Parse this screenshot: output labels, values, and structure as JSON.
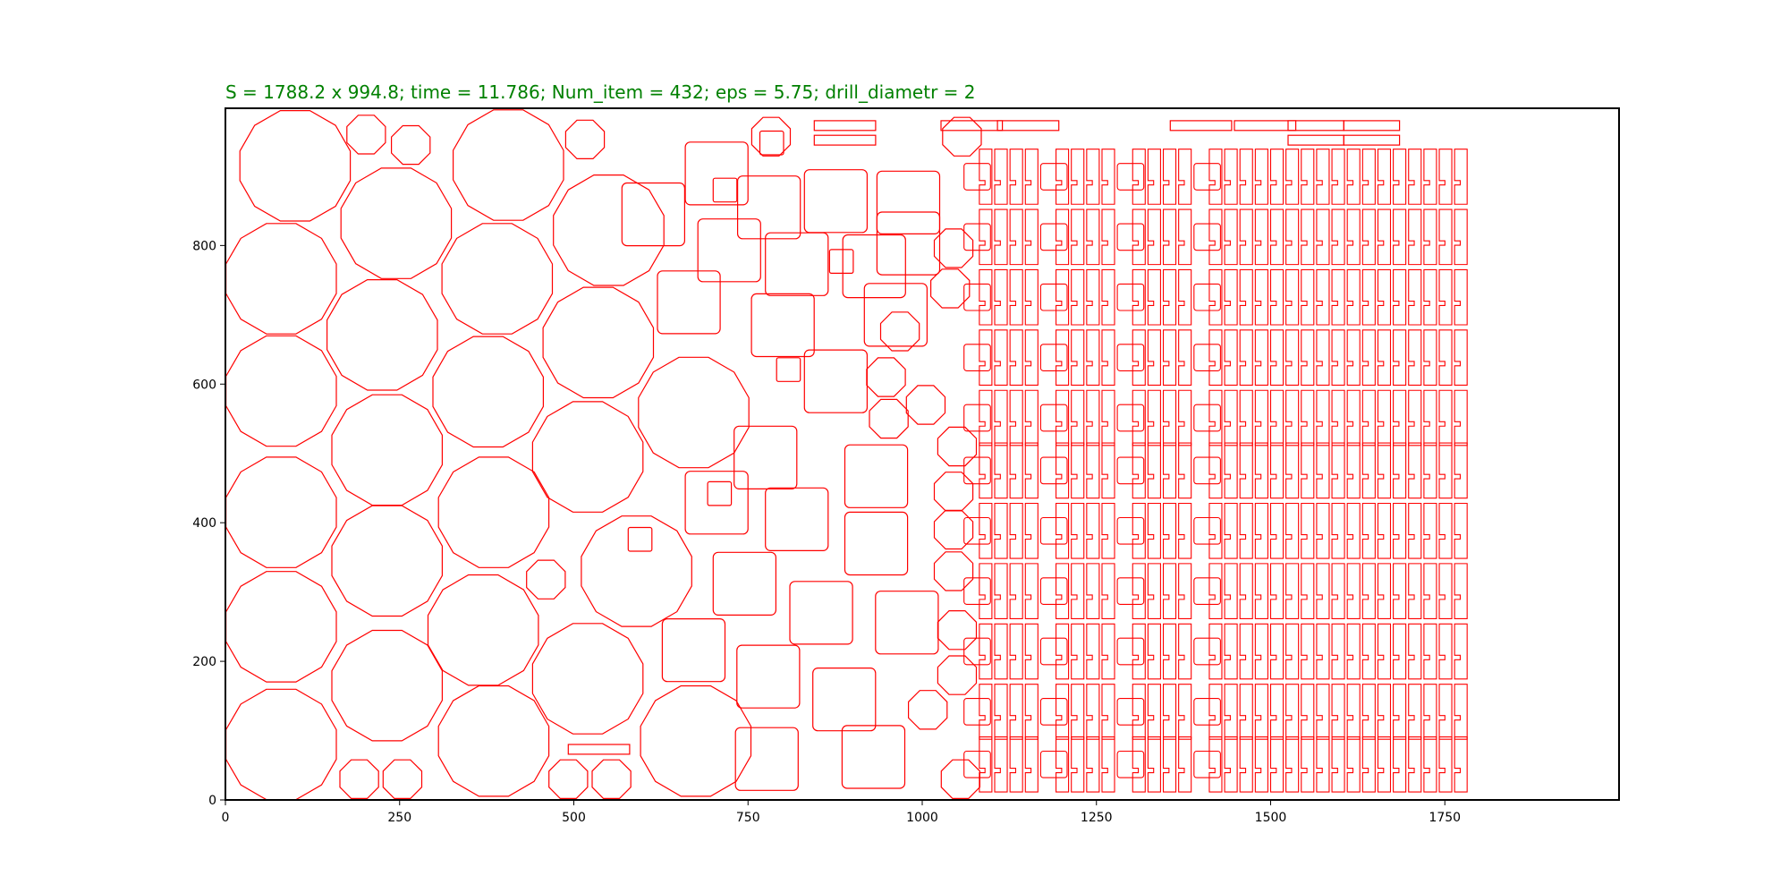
{
  "chart_data": {
    "type": "scatter",
    "title": "S = 1788.2 x 994.8;  time = 11.786;  Num_item = 432;  eps = 5.75;  drill_diametr = 2",
    "xlabel": "",
    "ylabel": "",
    "xlim": [
      0,
      2000
    ],
    "ylim": [
      0,
      998
    ],
    "x_ticks": [
      "0",
      "250",
      "500",
      "750",
      "1000",
      "1250",
      "1500",
      "1750"
    ],
    "y_ticks": [
      "0",
      "200",
      "400",
      "600",
      "800"
    ],
    "grid": false,
    "legend": "none",
    "colors": {
      "title": "#008000",
      "items": "#ff0000",
      "axes": "#000000"
    },
    "octagons": [
      [
        100,
        915,
        82
      ],
      [
        202,
        960,
        30
      ],
      [
        266,
        945,
        30
      ],
      [
        406,
        916,
        82
      ],
      [
        516,
        953,
        30
      ],
      [
        245,
        832,
        82
      ],
      [
        550,
        822,
        82
      ],
      [
        80,
        752,
        82
      ],
      [
        390,
        752,
        82
      ],
      [
        225,
        671,
        82
      ],
      [
        535,
        660,
        82
      ],
      [
        80,
        590,
        82
      ],
      [
        377,
        589,
        82
      ],
      [
        672,
        559,
        82
      ],
      [
        232,
        505,
        82
      ],
      [
        80,
        415,
        82
      ],
      [
        385,
        415,
        82
      ],
      [
        520,
        495,
        82
      ],
      [
        232,
        345,
        82
      ],
      [
        590,
        330,
        82
      ],
      [
        80,
        250,
        82
      ],
      [
        370,
        245,
        82
      ],
      [
        232,
        165,
        82
      ],
      [
        520,
        175,
        82
      ],
      [
        80,
        80,
        82
      ],
      [
        385,
        85,
        82
      ],
      [
        675,
        85,
        82
      ],
      [
        192,
        30,
        30
      ],
      [
        254,
        30,
        30
      ],
      [
        492,
        30,
        30
      ],
      [
        554,
        30,
        30
      ],
      [
        460,
        318,
        30
      ],
      [
        1057,
        957,
        30
      ],
      [
        783,
        957,
        30
      ],
      [
        1045,
        796,
        30
      ],
      [
        1040,
        738,
        30
      ],
      [
        968,
        676,
        30
      ],
      [
        1005,
        570,
        30
      ],
      [
        948,
        610,
        30
      ],
      [
        952,
        550,
        30
      ],
      [
        1050,
        510,
        30
      ],
      [
        1045,
        445,
        30
      ],
      [
        1045,
        390,
        30
      ],
      [
        1045,
        330,
        30
      ],
      [
        1050,
        245,
        30
      ],
      [
        1050,
        180,
        30
      ],
      [
        1008,
        130,
        30
      ],
      [
        1055,
        30,
        30
      ]
    ],
    "squares": [
      [
        705,
        904,
        90
      ],
      [
        614,
        845,
        90
      ],
      [
        780,
        855,
        90
      ],
      [
        876,
        864,
        90
      ],
      [
        980,
        862,
        90
      ],
      [
        723,
        793,
        90
      ],
      [
        820,
        773,
        90
      ],
      [
        980,
        803,
        90
      ],
      [
        931,
        770,
        90
      ],
      [
        665,
        718,
        90
      ],
      [
        800,
        685,
        90
      ],
      [
        962,
        700,
        90
      ],
      [
        876,
        604,
        90
      ],
      [
        775,
        494,
        90
      ],
      [
        934,
        467,
        90
      ],
      [
        705,
        429,
        90
      ],
      [
        820,
        405,
        90
      ],
      [
        934,
        370,
        90
      ],
      [
        745,
        312,
        90
      ],
      [
        855,
        270,
        90
      ],
      [
        978,
        256,
        90
      ],
      [
        672,
        216,
        90
      ],
      [
        779,
        178,
        90
      ],
      [
        888,
        145,
        90
      ],
      [
        777,
        59,
        90
      ],
      [
        930,
        62,
        90
      ],
      [
        784,
        948,
        34
      ],
      [
        717,
        880,
        34
      ],
      [
        884,
        777,
        34
      ],
      [
        808,
        621,
        34
      ],
      [
        709,
        442,
        34
      ],
      [
        595,
        376,
        34
      ]
    ],
    "h_bars": [
      [
        889,
        973,
        88
      ],
      [
        889,
        952,
        88
      ],
      [
        1071,
        973,
        88
      ],
      [
        1152,
        973,
        88
      ],
      [
        1400,
        973,
        88
      ],
      [
        1492,
        973,
        88
      ],
      [
        1565,
        973,
        80
      ],
      [
        1645,
        973,
        80
      ],
      [
        1565,
        952,
        80
      ],
      [
        1645,
        952,
        80
      ],
      [
        536,
        73,
        88
      ]
    ],
    "grid_columns_x_start": 1060,
    "grid_columns_x_end": 1780
  }
}
